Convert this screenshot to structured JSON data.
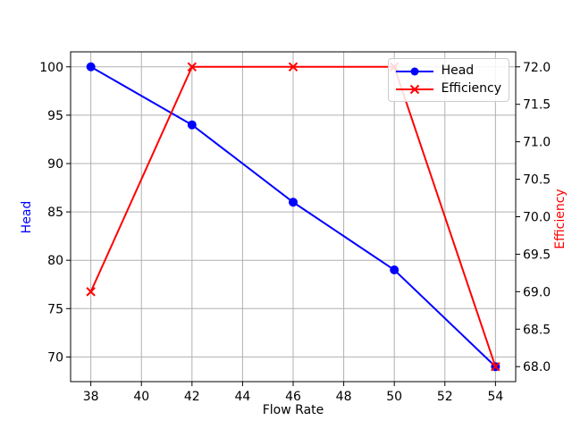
{
  "chart_data": {
    "type": "line",
    "title": "",
    "xlabel": "Flow Rate",
    "ylabel_left": "Head",
    "ylabel_right": "Efficiency",
    "x": [
      38,
      42,
      46,
      50,
      54
    ],
    "series": [
      {
        "name": "Head",
        "axis": "left",
        "color": "#0000ff",
        "marker": "circle",
        "values": [
          100,
          94,
          86,
          79,
          69
        ]
      },
      {
        "name": "Efficiency",
        "axis": "right",
        "color": "#ff0000",
        "marker": "x",
        "values": [
          69,
          72,
          72,
          72,
          68
        ]
      }
    ],
    "x_ticks": [
      "38",
      "40",
      "42",
      "44",
      "46",
      "48",
      "50",
      "52",
      "54"
    ],
    "y_left_ticks": [
      "70",
      "75",
      "80",
      "85",
      "90",
      "95",
      "100"
    ],
    "y_right_ticks": [
      "68.0",
      "68.5",
      "69.0",
      "69.5",
      "70.0",
      "70.5",
      "71.0",
      "71.5",
      "72.0"
    ],
    "xlim": [
      37.2,
      54.8
    ],
    "ylim_left": [
      67.45,
      101.55
    ],
    "ylim_right": [
      67.8,
      72.2
    ],
    "grid": true,
    "grid_color": "#b0b0b0",
    "spine_color": "#000000",
    "tick_label_color": "#000000",
    "background_color": "#ffffff",
    "legend": {
      "position": "upper right",
      "entries": [
        "Head",
        "Efficiency"
      ]
    }
  }
}
